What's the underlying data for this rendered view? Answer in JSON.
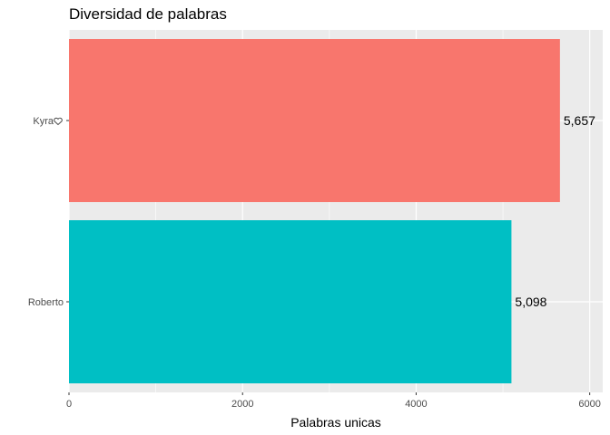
{
  "chart_data": {
    "type": "bar",
    "orientation": "horizontal",
    "title": "Diversidad de palabras",
    "xlabel": "Palabras unicas",
    "ylabel": "",
    "xlim": [
      0,
      6150
    ],
    "x_ticks": [
      0,
      2000,
      4000,
      6000
    ],
    "x_tick_labels": [
      "0",
      "2000",
      "4000",
      "6000"
    ],
    "categories": [
      "Kyra",
      "Roberto"
    ],
    "category_icons": [
      "heart-icon",
      ""
    ],
    "values": [
      5657,
      5098
    ],
    "data_labels": [
      "5,657",
      "5,098"
    ],
    "colors": [
      "#F8766D",
      "#00BFC4"
    ],
    "panel_background": "#EBEBEB",
    "grid": true,
    "legend": "none"
  }
}
